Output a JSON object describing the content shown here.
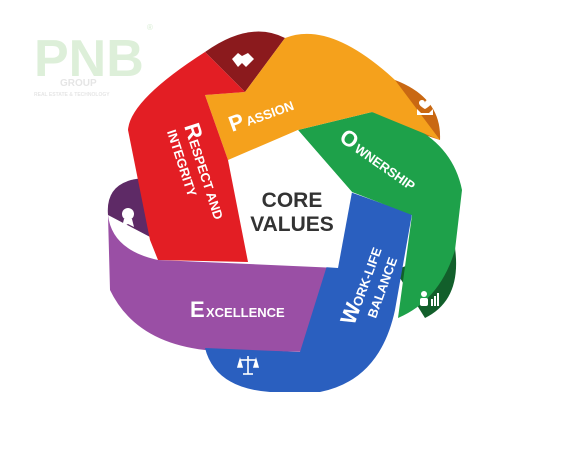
{
  "logo": {
    "mark": "PNB",
    "group": "GROUP",
    "tagline": "REAL ESTATE & TECHNOLOGY",
    "registered": "®"
  },
  "center": {
    "line1": "CORE",
    "line2": "VALUES"
  },
  "values": [
    {
      "name": "Passion",
      "cap": "P",
      "rest": "ASSION",
      "color": "#f5a11c",
      "icon": "heart-hands-icon"
    },
    {
      "name": "Ownership",
      "cap": "O",
      "rest": "WNERSHIP",
      "color": "#1ea14a",
      "icon": "people-chart-icon"
    },
    {
      "name": "Work-Life Balance",
      "cap": "W",
      "rest": "ORK-LIFE",
      "line2": "BALANCE",
      "color": "#2060c0",
      "icon": "scales-icon"
    },
    {
      "name": "Excellence",
      "cap": "E",
      "rest": "XCELLENCE",
      "color": "#9a4fa5",
      "icon": "award-icon"
    },
    {
      "name": "Respect and Integrity",
      "cap": "R",
      "rest": "ESPECT AND",
      "line2": "INTEGRITY",
      "color": "#e31e24",
      "icon": "handshake-icon"
    }
  ]
}
